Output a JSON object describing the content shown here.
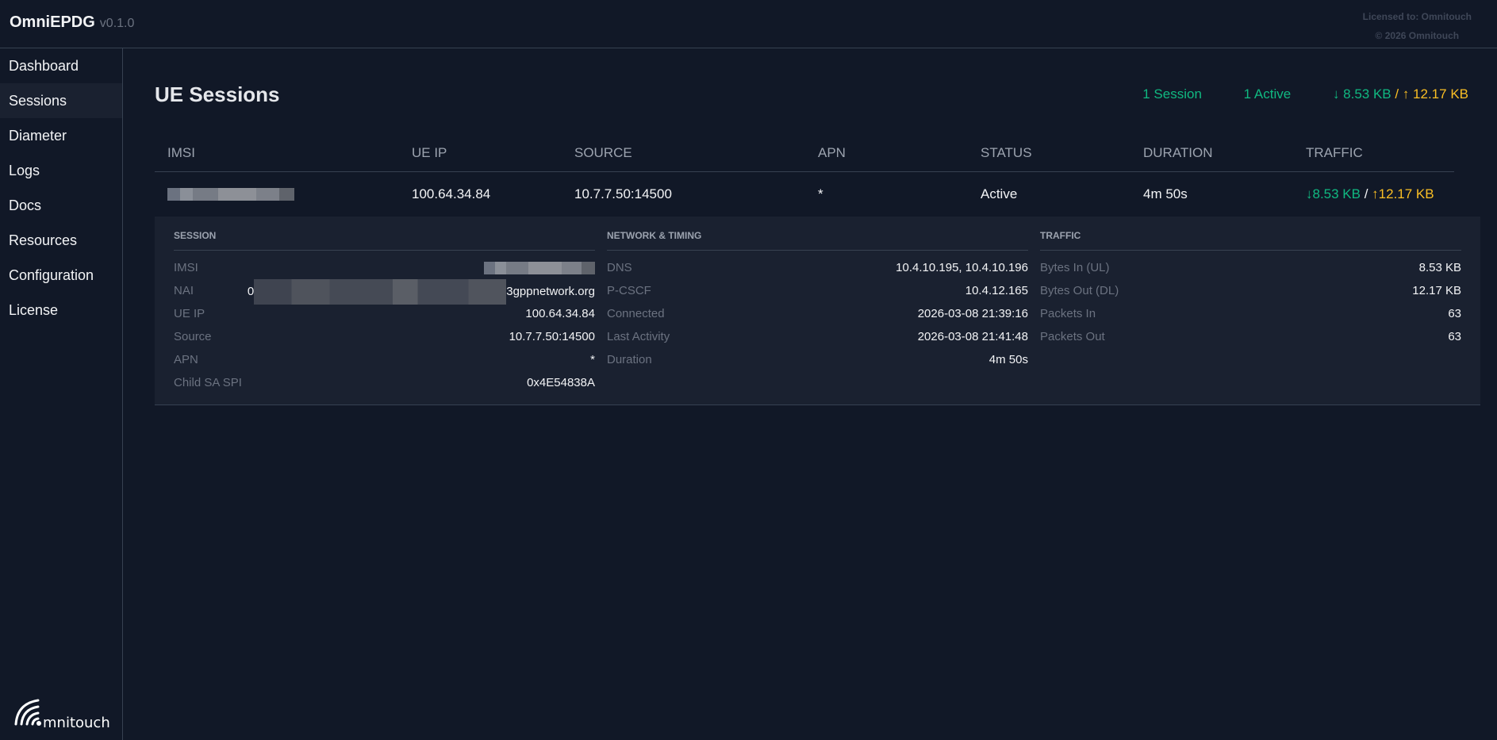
{
  "header": {
    "brand": "OmniEPDG",
    "version": "v0.1.0",
    "licensed": "Licensed to: Omnitouch",
    "copyright": "© 2026 Omnitouch"
  },
  "sidebar": {
    "items": [
      {
        "label": "Dashboard"
      },
      {
        "label": "Sessions"
      },
      {
        "label": "Diameter"
      },
      {
        "label": "Logs"
      },
      {
        "label": "Docs"
      },
      {
        "label": "Resources"
      },
      {
        "label": "Configuration"
      },
      {
        "label": "License"
      }
    ],
    "active": "Sessions",
    "logo": "omnitouch"
  },
  "page": {
    "title": "UE Sessions",
    "stats": {
      "sessions": "1 Session",
      "active": "1 Active",
      "down": "↓ 8.53 KB",
      "sep": " / ",
      "up": "↑ 12.17 KB"
    }
  },
  "table": {
    "columns": [
      "IMSI",
      "UE IP",
      "SOURCE",
      "APN",
      "STATUS",
      "DURATION",
      "TRAFFIC"
    ],
    "rows": [
      {
        "imsi": "",
        "ue_ip": "100.64.34.84",
        "source": "10.7.7.50:14500",
        "apn": "*",
        "status": "Active",
        "duration": "4m 50s",
        "down": "↓8.53 KB",
        "sep": " / ",
        "up": "↑12.17 KB"
      }
    ]
  },
  "detail": {
    "session": {
      "title": "SESSION",
      "imsi_label": "IMSI",
      "nai_label": "NAI",
      "nai_prefix": "0",
      "nai_suffix": "3gppnetwork.org",
      "ue_ip_label": "UE IP",
      "ue_ip": "100.64.34.84",
      "source_label": "Source",
      "source": "10.7.7.50:14500",
      "apn_label": "APN",
      "apn": "*",
      "spi_label": "Child SA SPI",
      "spi": "0x4E54838A"
    },
    "network": {
      "title": "NETWORK & TIMING",
      "dns_label": "DNS",
      "dns": "10.4.10.195, 10.4.10.196",
      "pcscf_label": "P-CSCF",
      "pcscf": "10.4.12.165",
      "connected_label": "Connected",
      "connected": "2026-03-08 21:39:16",
      "last_label": "Last Activity",
      "last": "2026-03-08 21:41:48",
      "duration_label": "Duration",
      "duration": "4m 50s"
    },
    "traffic": {
      "title": "TRAFFIC",
      "in_label": "Bytes In (UL)",
      "in": "8.53 KB",
      "out_label": "Bytes Out (DL)",
      "out": "12.17 KB",
      "pin_label": "Packets In",
      "pin": "63",
      "pout_label": "Packets Out",
      "pout": "63"
    }
  },
  "colors": {
    "green": "#10b981",
    "amber": "#fbbf24",
    "bg": "#111827",
    "panel": "#1a2130"
  }
}
